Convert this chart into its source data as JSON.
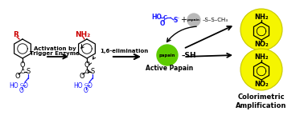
{
  "bg_color": "#ffffff",
  "fig_width": 3.78,
  "fig_height": 1.49,
  "dpi": 100,
  "black": "#000000",
  "red": "#cc0000",
  "blue": "#1a1aff",
  "dblue": "#1a1aff",
  "green_circle": "#5dcc00",
  "gray_circle": "#b8b8b8",
  "yellow_circle": "#f5f500",
  "yellow_edge": "#c8c800",
  "papain_text": "papain",
  "active_papain_label": "Active Papain",
  "colorimetric_label": "Colorimetric\nAmplification",
  "activation_label": "Activation by\nTrigger Enzyme",
  "elimination_label": "1,6-elimination",
  "lw": 0.9
}
